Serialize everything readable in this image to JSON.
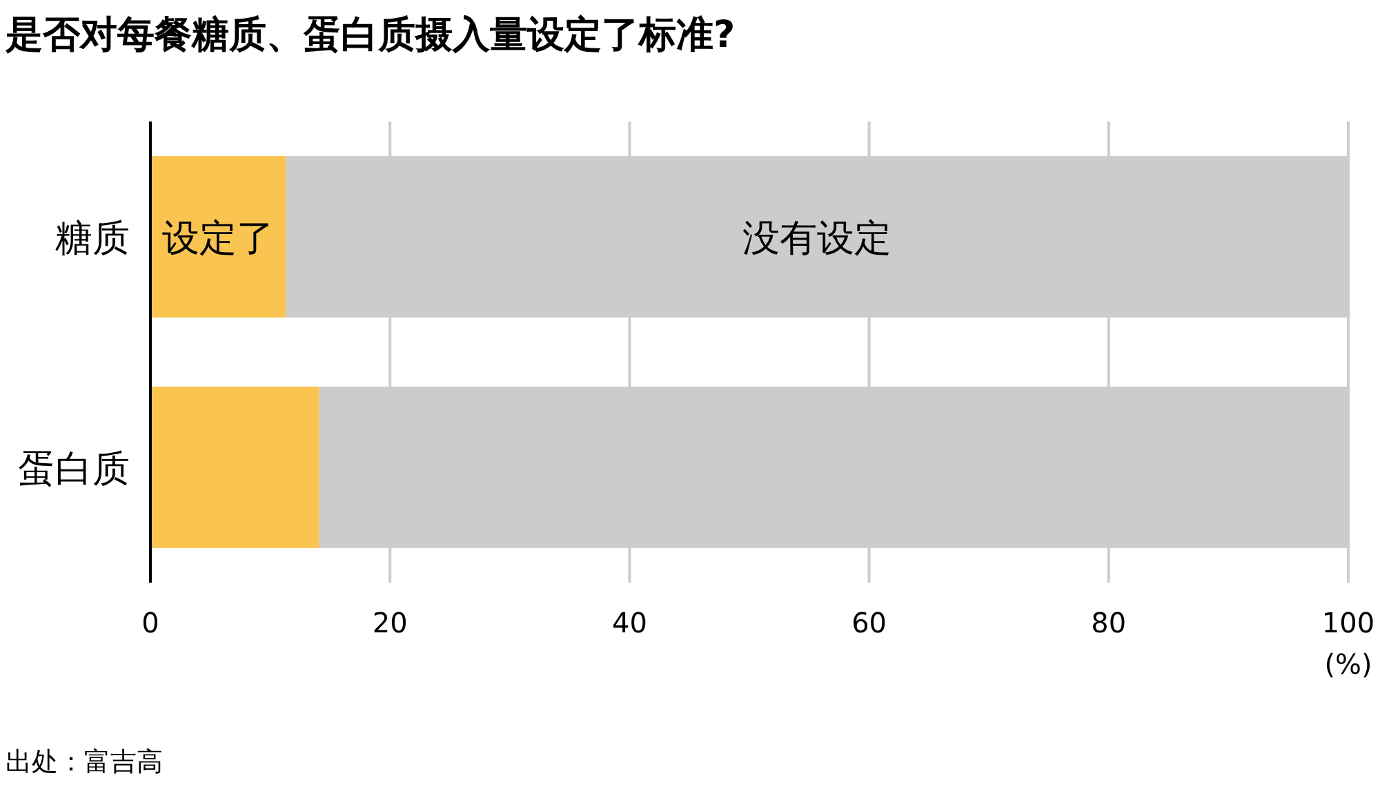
{
  "chart_data": {
    "type": "bar",
    "orientation": "horizontal",
    "stacked": true,
    "title": "是否对每餐糖质、蛋白质摄入量设定了标准?",
    "categories": [
      "糖质",
      "蛋白质"
    ],
    "series": [
      {
        "name": "设定了",
        "color": "#f9c550",
        "values": [
          11.3,
          14.1
        ]
      },
      {
        "name": "没有设定",
        "color": "#cccccc",
        "values": [
          88.7,
          85.9
        ]
      }
    ],
    "xlim": [
      0,
      100
    ],
    "xticks": [
      0,
      20,
      40,
      60,
      80,
      100
    ],
    "xlabel": "(%)",
    "grid": "x",
    "legend": false,
    "annotations": [
      "出处：富吉高"
    ]
  }
}
